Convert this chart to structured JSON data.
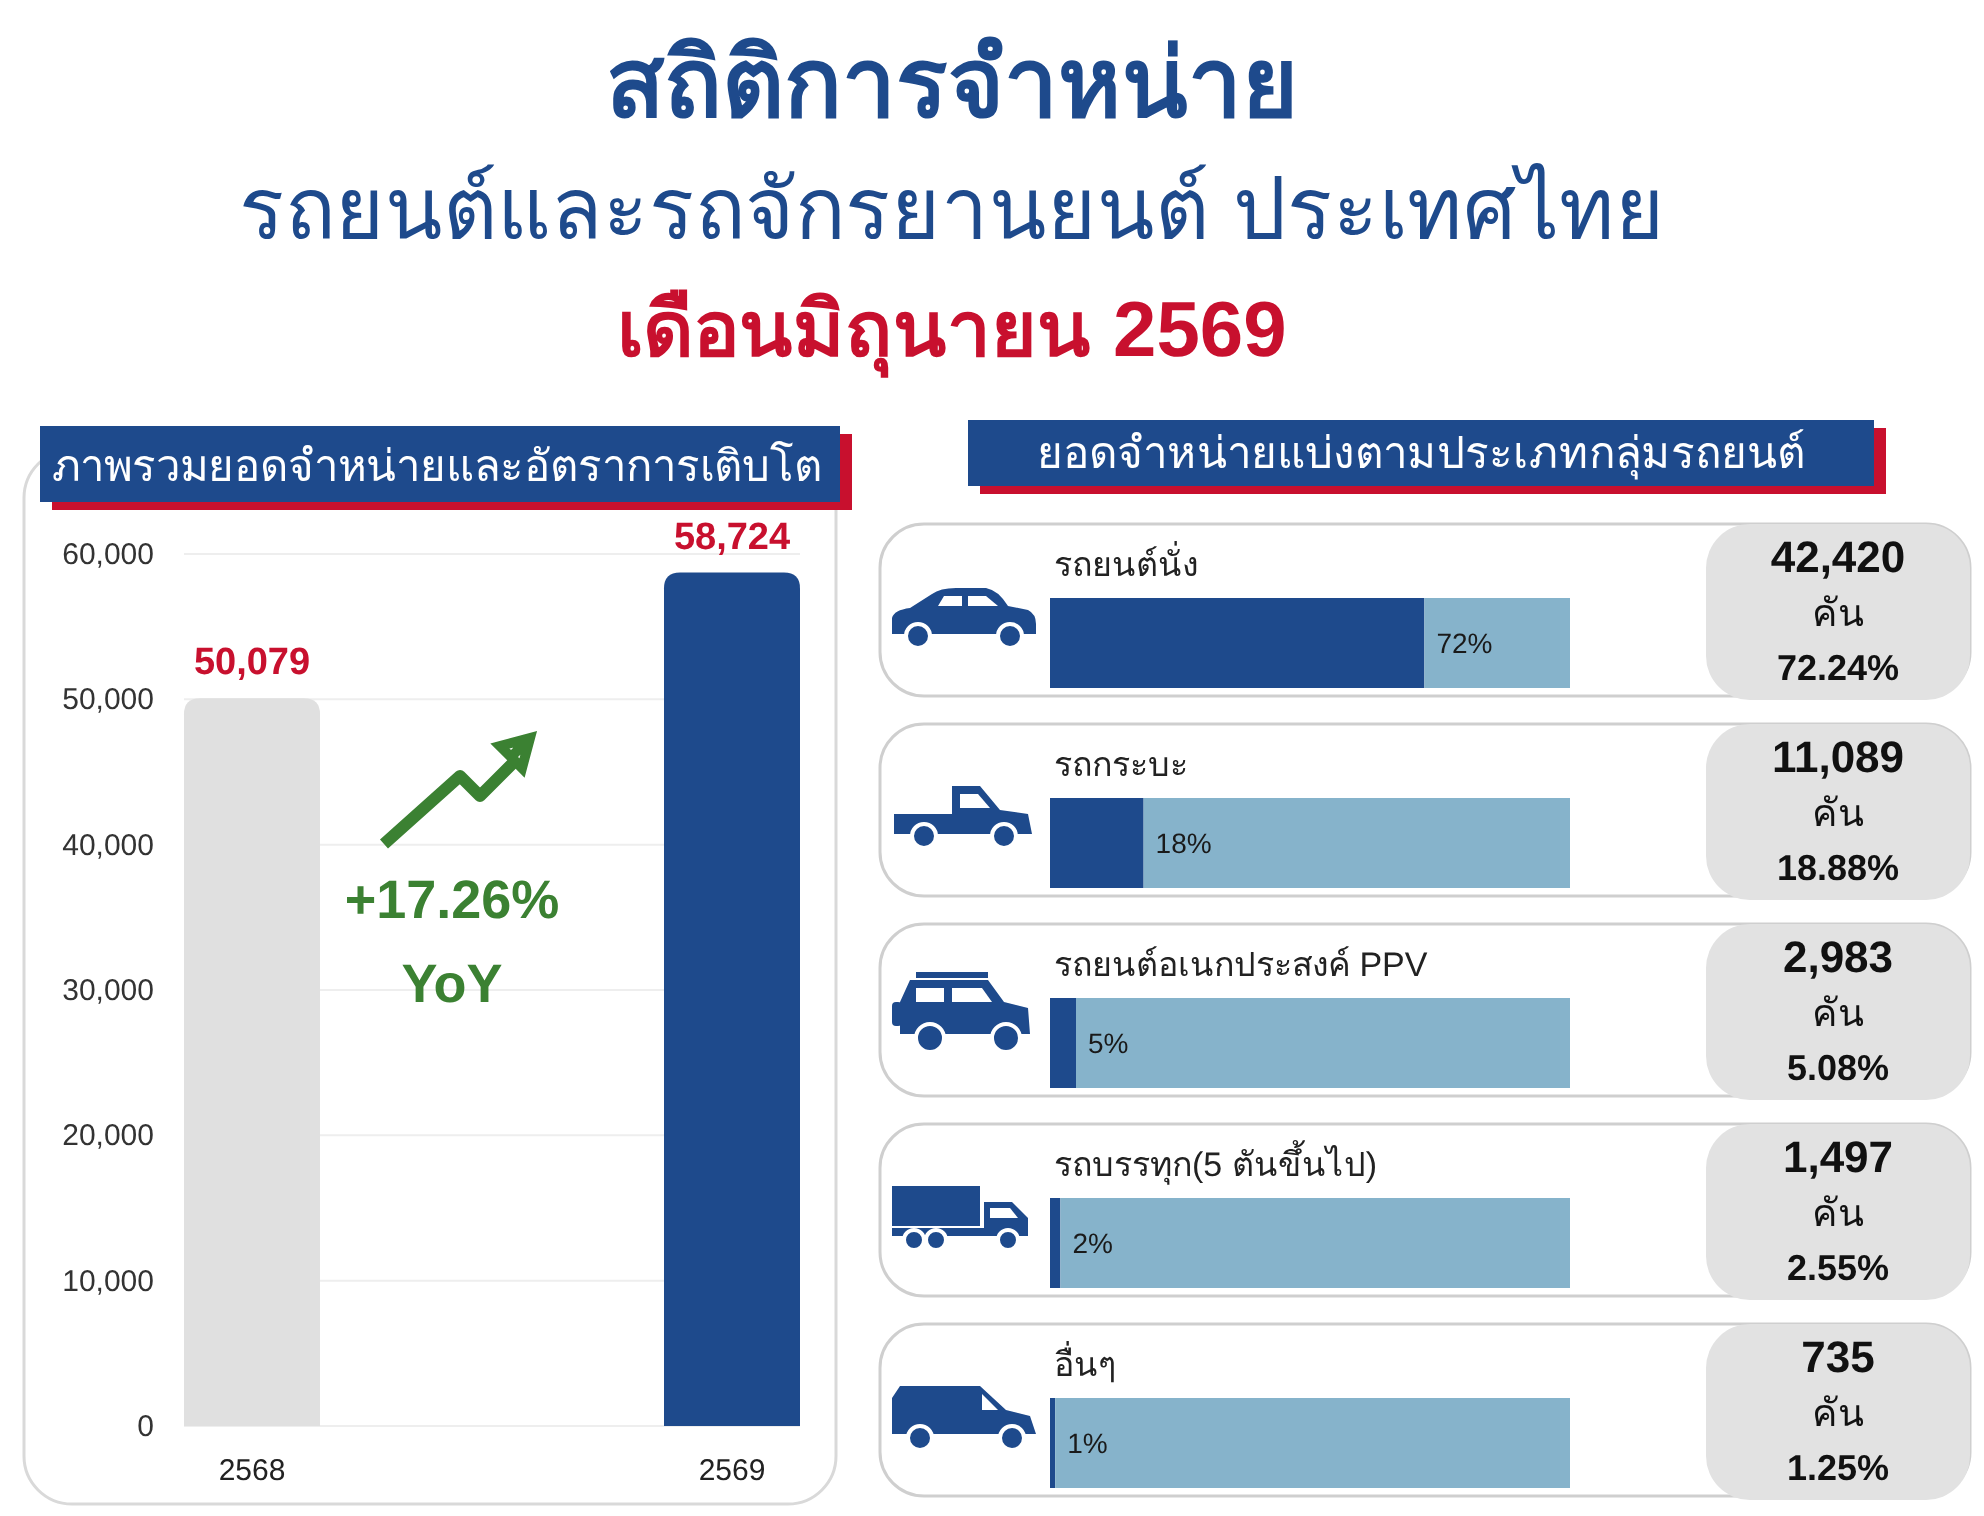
{
  "chart_data": [
    {
      "type": "other",
      "title": "สถิติการจำหน่าย",
      "subtitle": "รถยนต์และรถจักรยานยนต์ ประเทศไทย",
      "annotations": [
        "เดือนมิถุนายน 2569"
      ]
    },
    {
      "type": "bar",
      "title": "ภาพรวมยอดจำหน่ายและอัตราการเติบโต",
      "categories": [
        "2568",
        "2569"
      ],
      "values": [
        50079,
        58724
      ],
      "colors": [
        "#e0e0e0",
        "#1e4a8c"
      ],
      "value_labels": [
        "50,079",
        "58,724"
      ],
      "ylim": [
        0,
        60000
      ],
      "yticks": [
        0,
        {
          "value": 10000,
          "label": "10,000"
        },
        {
          "value": 20000,
          "label": "20,000"
        },
        {
          "value": 30000,
          "label": "30,000"
        },
        {
          "value": 40000,
          "label": "40,000"
        },
        {
          "value": 50000,
          "label": "50,000"
        },
        {
          "value": 60000,
          "label": "60,000"
        }
      ],
      "grid": "y",
      "annotations": [
        "+17.26%\nYoY"
      ]
    },
    {
      "type": "bar",
      "orientation": "horizontal",
      "stacked": true,
      "title": "ยอดจำหน่ายแบ่งตามประเภทกลุ่มรถยนต์",
      "categories": [
        "รถยนต์นั่ง",
        "รถกระบะ",
        "รถยนต์อเนกประสงค์ PPV",
        "รถบรรทุก(5 ตันขึ้นไป)",
        "อื่นๆ"
      ],
      "series": [
        {
          "color": "#1e4a8c",
          "values": [
            72,
            18,
            5,
            2,
            1
          ],
          "value_labels": [
            "72%",
            "18%",
            "5%",
            "2%",
            "1%"
          ]
        },
        {
          "color": "#86b3cb",
          "values": [
            28,
            82,
            95,
            98,
            99
          ]
        }
      ],
      "annotations": [
        "42,420\nคัน\n72.24%",
        "11,089\nคัน\n18.88%",
        "2,983\nคัน\n5.08%",
        "1,497\nคัน\n2.55%",
        "735\nคัน\n1.25%"
      ]
    }
  ]
}
